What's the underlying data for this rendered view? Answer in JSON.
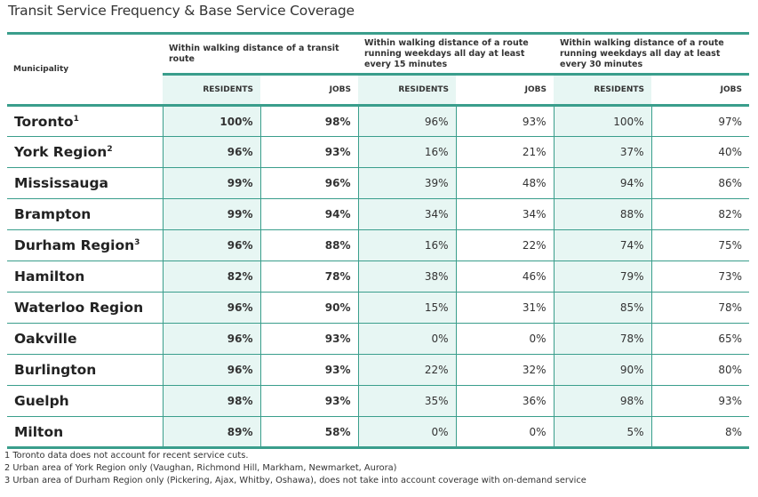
{
  "title": "Transit Service Frequency & Base Service Coverage",
  "headers": {
    "municipality": "Municipality",
    "groups": [
      "Within walking distance of a transit route",
      "Within walking distance of a route running weekdays all day at least every 15 minutes",
      "Within walking distance of a route running weekdays all day at least every 30 minutes"
    ],
    "residents": "RESIDENTS",
    "jobs": "JOBS"
  },
  "rows": [
    {
      "name": "Toronto",
      "sup": "1",
      "values": [
        "100%",
        "98%",
        "96%",
        "93%",
        "100%",
        "97%"
      ]
    },
    {
      "name": "York Region",
      "sup": "2",
      "values": [
        "96%",
        "93%",
        "16%",
        "21%",
        "37%",
        "40%"
      ]
    },
    {
      "name": "Mississauga",
      "sup": "",
      "values": [
        "99%",
        "96%",
        "39%",
        "48%",
        "94%",
        "86%"
      ]
    },
    {
      "name": "Brampton",
      "sup": "",
      "values": [
        "99%",
        "94%",
        "34%",
        "34%",
        "88%",
        "82%"
      ]
    },
    {
      "name": "Durham Region",
      "sup": "3",
      "values": [
        "96%",
        "88%",
        "16%",
        "22%",
        "74%",
        "75%"
      ]
    },
    {
      "name": "Hamilton",
      "sup": "",
      "values": [
        "82%",
        "78%",
        "38%",
        "46%",
        "79%",
        "73%"
      ]
    },
    {
      "name": "Waterloo Region",
      "sup": "",
      "values": [
        "96%",
        "90%",
        "15%",
        "31%",
        "85%",
        "78%"
      ]
    },
    {
      "name": "Oakville",
      "sup": "",
      "values": [
        "96%",
        "93%",
        "0%",
        "0%",
        "78%",
        "65%"
      ]
    },
    {
      "name": "Burlington",
      "sup": "",
      "values": [
        "96%",
        "93%",
        "22%",
        "32%",
        "90%",
        "80%"
      ]
    },
    {
      "name": "Guelph",
      "sup": "",
      "values": [
        "98%",
        "93%",
        "35%",
        "36%",
        "98%",
        "93%"
      ]
    },
    {
      "name": "Milton",
      "sup": "",
      "values": [
        "89%",
        "58%",
        "0%",
        "0%",
        "5%",
        "8%"
      ]
    }
  ],
  "footnotes": [
    "1 Toronto data does not account for recent service cuts.",
    "2  Urban area of York Region only (Vaughan, Richmond Hill, Markham, Newmarket, Aurora)",
    "3  Urban area of Durham Region only (Pickering, Ajax, Whitby, Oshawa), does not take into account coverage with on-demand service"
  ],
  "colors": {
    "accent": "#3a9e8c",
    "residents_bg": "#e7f6f3"
  }
}
